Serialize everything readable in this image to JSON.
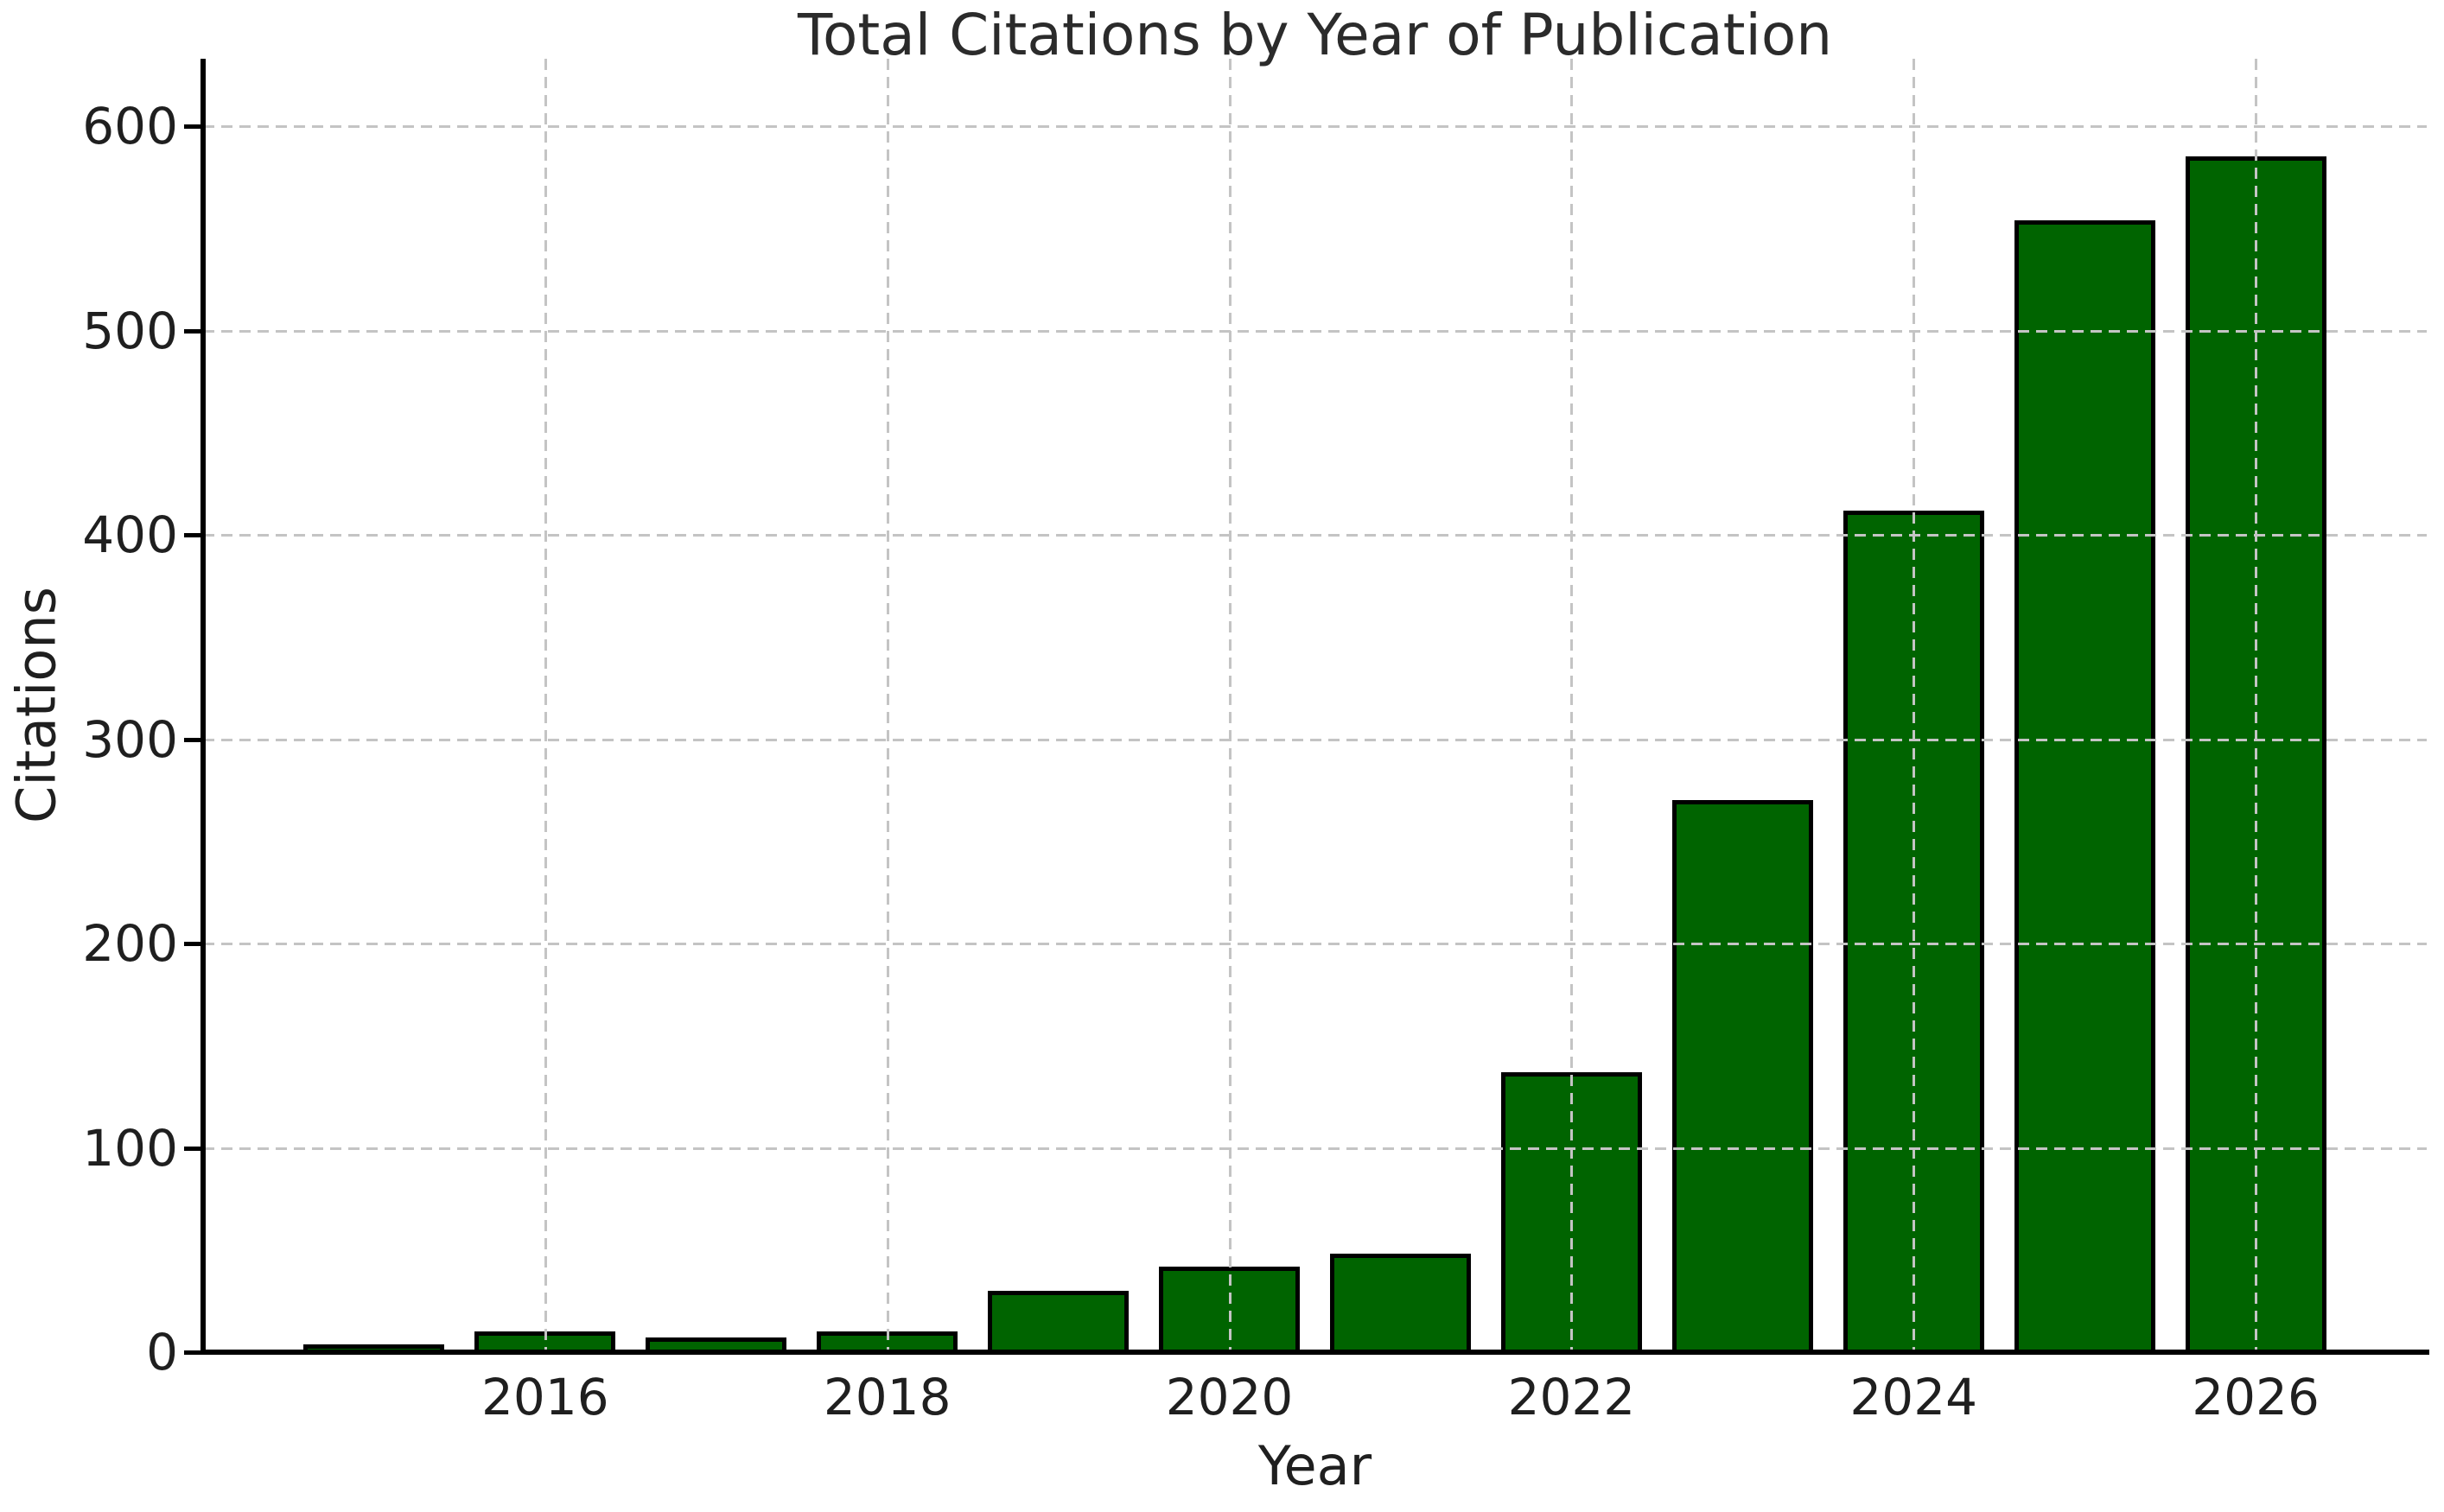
{
  "chart_data": {
    "type": "bar",
    "title": "Total Citations by Year of Publication",
    "xlabel": "Year",
    "ylabel": "Citations",
    "categories": [
      2015,
      2016,
      2017,
      2018,
      2019,
      2020,
      2021,
      2022,
      2023,
      2024,
      2025,
      2026
    ],
    "values": [
      4,
      10,
      7,
      10,
      30,
      42,
      48,
      137,
      270,
      412,
      554,
      585
    ],
    "x_ticks": [
      {
        "value": 2016,
        "label": "2016"
      },
      {
        "value": 2018,
        "label": "2018"
      },
      {
        "value": 2020,
        "label": "2020"
      },
      {
        "value": 2022,
        "label": "2022"
      },
      {
        "value": 2024,
        "label": "2024"
      },
      {
        "value": 2026,
        "label": "2026"
      }
    ],
    "y_ticks": [
      {
        "value": 0,
        "label": "0"
      },
      {
        "value": 100,
        "label": "100"
      },
      {
        "value": 200,
        "label": "200"
      },
      {
        "value": 300,
        "label": "300"
      },
      {
        "value": 400,
        "label": "400"
      },
      {
        "value": 500,
        "label": "500"
      },
      {
        "value": 600,
        "label": "600"
      }
    ],
    "xlim": [
      2014,
      2027
    ],
    "ylim": [
      0,
      633
    ],
    "grid": {
      "axis": "both",
      "style": "dashed",
      "above_bars": true
    },
    "legend": "none",
    "colors": {
      "bar_fill": "#006400",
      "bar_edge": "#000000",
      "grid": "#c4c4c4",
      "spine": "#000000",
      "text": "#1f1f1f"
    }
  }
}
